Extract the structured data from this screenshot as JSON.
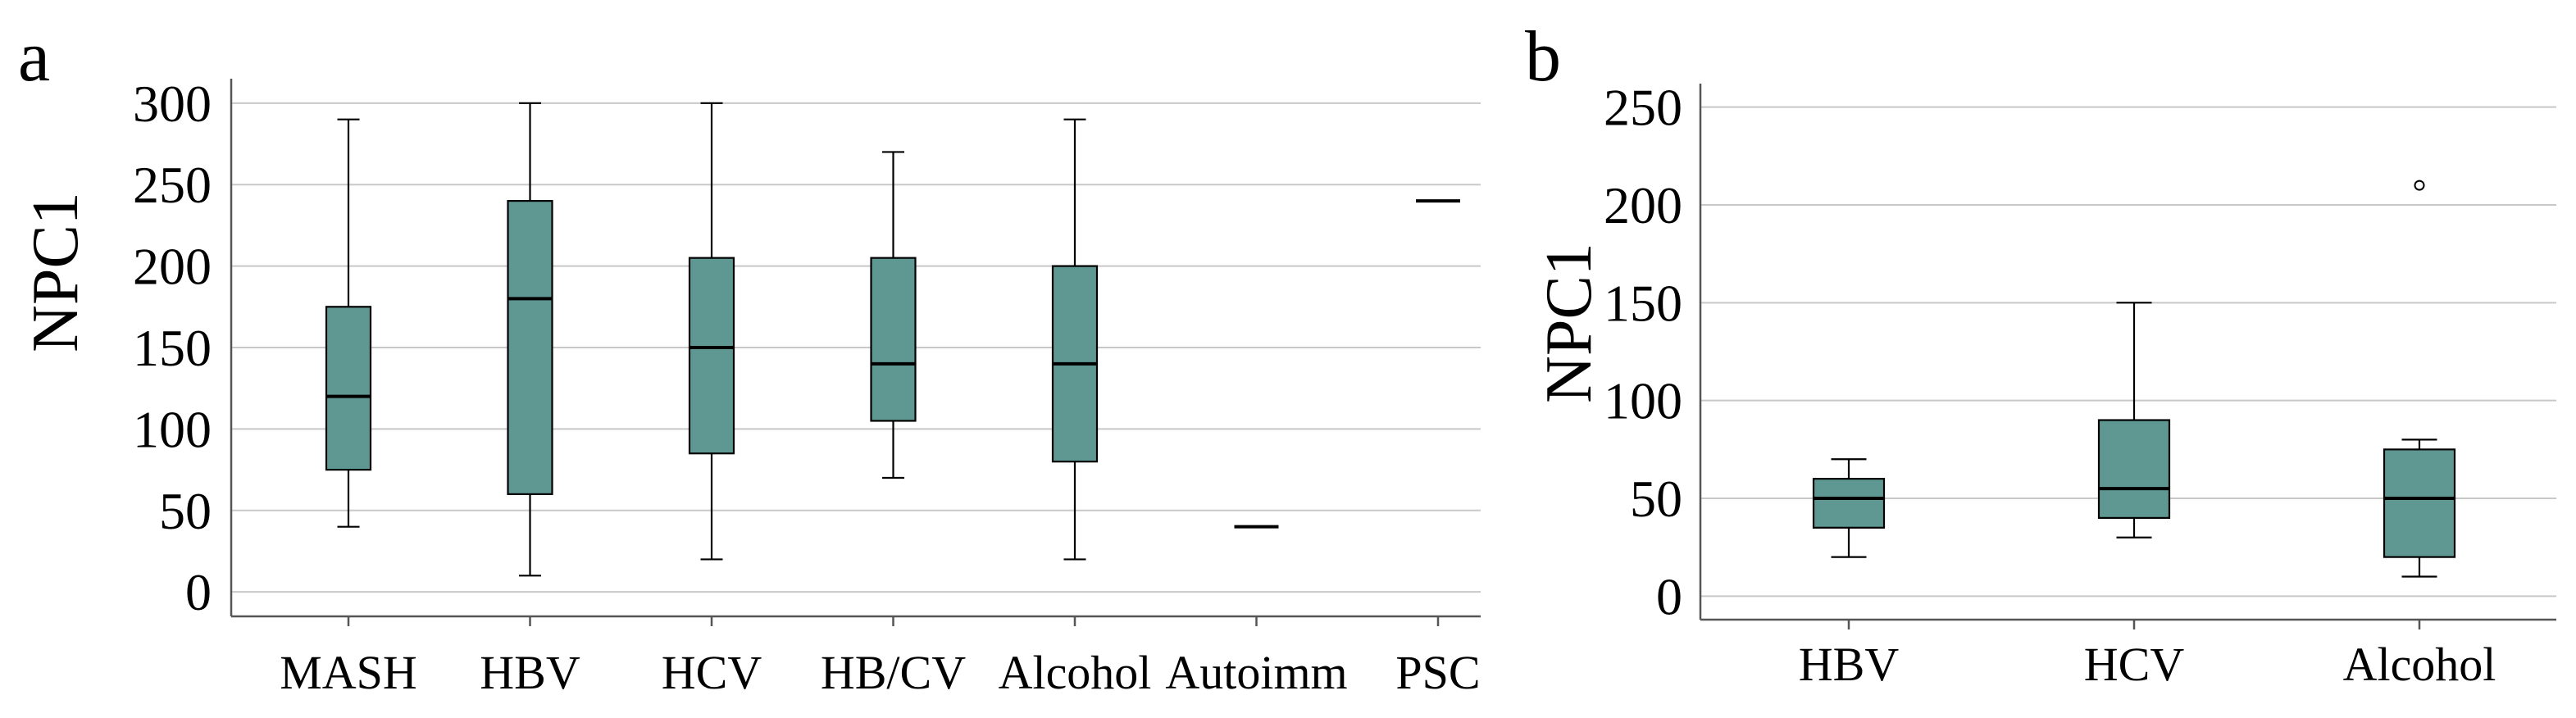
{
  "colors": {
    "box_fill": "#5f9793",
    "box_stroke": "#000000",
    "grid": "#c8c8c8"
  },
  "chart_data": [
    {
      "panel": "a",
      "type": "box",
      "xlabel": "",
      "ylabel": "NPC1",
      "ylim": [
        -15,
        315
      ],
      "yticks": [
        0,
        50,
        100,
        150,
        200,
        250,
        300
      ],
      "grid": true,
      "categories": [
        "MASH",
        "HBV",
        "HCV",
        "HB/CV",
        "Alcohol",
        "Autoimm",
        "PSC"
      ],
      "boxes": [
        {
          "category": "MASH",
          "min": 40,
          "q1": 75,
          "median": 120,
          "q3": 175,
          "max": 290
        },
        {
          "category": "HBV",
          "min": 10,
          "q1": 60,
          "median": 180,
          "q3": 240,
          "max": 300
        },
        {
          "category": "HCV",
          "min": 20,
          "q1": 85,
          "median": 150,
          "q3": 205,
          "max": 300
        },
        {
          "category": "HB/CV",
          "min": 70,
          "q1": 105,
          "median": 140,
          "q3": 205,
          "max": 270
        },
        {
          "category": "Alcohol",
          "min": 20,
          "q1": 80,
          "median": 140,
          "q3": 200,
          "max": 290
        },
        {
          "category": "Autoimm",
          "min": 40,
          "q1": 40,
          "median": 40,
          "q3": 40,
          "max": 40
        },
        {
          "category": "PSC",
          "min": 240,
          "q1": 240,
          "median": 240,
          "q3": 240,
          "max": 240
        }
      ],
      "outliers": []
    },
    {
      "panel": "b",
      "type": "box",
      "xlabel": "",
      "ylabel": "NPC1",
      "ylim": [
        -12,
        262
      ],
      "yticks": [
        0,
        50,
        100,
        150,
        200,
        250
      ],
      "grid": true,
      "categories": [
        "HBV",
        "HCV",
        "Alcohol"
      ],
      "boxes": [
        {
          "category": "HBV",
          "min": 20,
          "q1": 35,
          "median": 50,
          "q3": 60,
          "max": 70
        },
        {
          "category": "HCV",
          "min": 30,
          "q1": 40,
          "median": 55,
          "q3": 90,
          "max": 150
        },
        {
          "category": "Alcohol",
          "min": 10,
          "q1": 20,
          "median": 50,
          "q3": 75,
          "max": 80
        }
      ],
      "outliers": [
        {
          "category": "Alcohol",
          "value": 210
        }
      ]
    }
  ]
}
